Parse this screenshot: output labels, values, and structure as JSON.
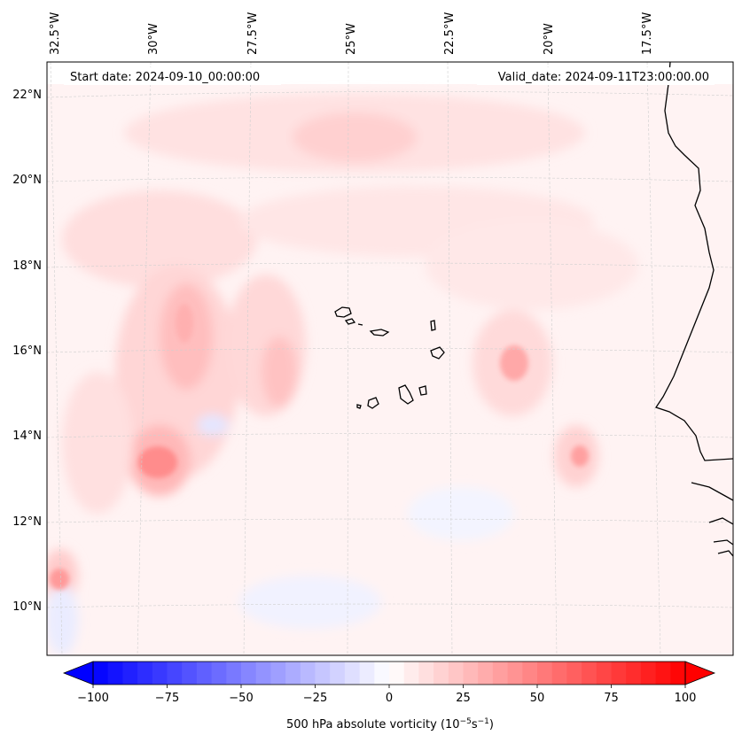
{
  "header": {
    "start_date": "Start date: 2024-09-10_00:00:00",
    "valid_date": "Valid_date: 2024-09-11T23:00:00.00"
  },
  "map": {
    "lon_labels": [
      "32.5°W",
      "30°W",
      "27.5°W",
      "25°W",
      "22.5°W",
      "20°W",
      "17.5°W"
    ],
    "lat_labels": [
      "22°N",
      "20°N",
      "18°N",
      "16°N",
      "14°N",
      "12°N",
      "10°N"
    ],
    "colors": {
      "frame": "#000000",
      "grid": "#cccccc",
      "coast": "#000000"
    }
  },
  "colorbar": {
    "ticks": [
      "−100",
      "−75",
      "−50",
      "−25",
      "0",
      "25",
      "50",
      "75",
      "100"
    ],
    "tick_values": [
      -100,
      -75,
      -50,
      -25,
      0,
      25,
      50,
      75,
      100
    ],
    "vmin": -100,
    "vmax": 100,
    "label": "500 hPa absolute vorticity (10",
    "label_exp1": "−5",
    "label_mid": "s",
    "label_exp2": "−1",
    "label_end": ")"
  }
}
